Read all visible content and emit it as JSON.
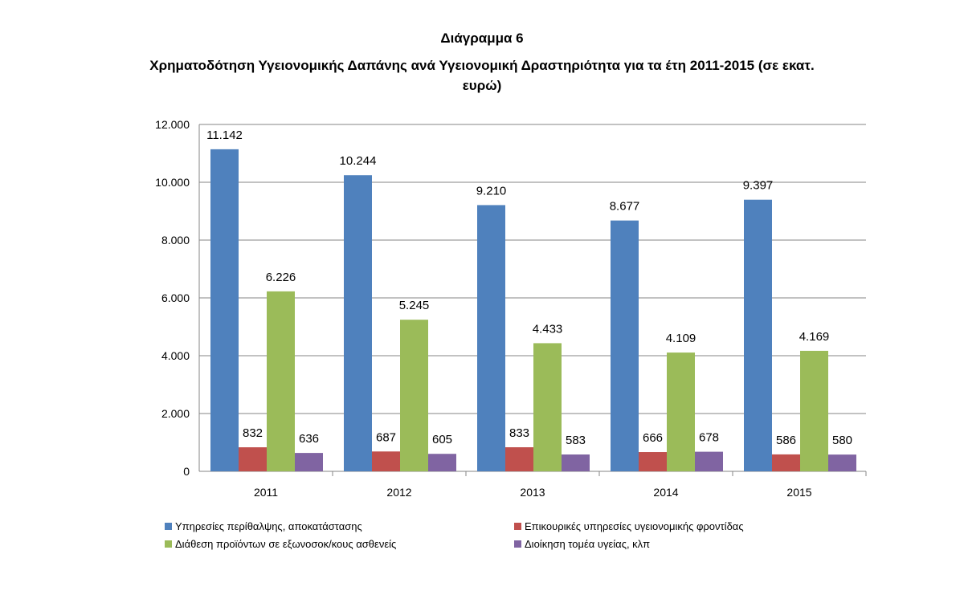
{
  "chart_data": {
    "type": "bar",
    "title": "Διάγραμμα 6",
    "subtitle": "Χρηματοδότηση Υγειονομικής Δαπάνης ανά Υγειονομική Δραστηριότητα για τα έτη 2011-2015 (σε εκατ.",
    "subtitle_line2": "ευρώ)",
    "categories": [
      "2011",
      "2012",
      "2013",
      "2014",
      "2015"
    ],
    "ylim": [
      0,
      12000
    ],
    "yticks": [
      0,
      2000,
      4000,
      6000,
      8000,
      10000,
      12000
    ],
    "ytick_labels": [
      "0",
      "2.000",
      "4.000",
      "6.000",
      "8.000",
      "10.000",
      "12.000"
    ],
    "grid": true,
    "legend_placement": "bottom",
    "series": [
      {
        "name": "Υπηρεσίες περίθαλψης, αποκατάστασης",
        "color": "#4F81BD",
        "values": [
          11142,
          10244,
          9210,
          8677,
          9397
        ],
        "labels": [
          "11.142",
          "10.244",
          "9.210",
          "8.677",
          "9.397"
        ]
      },
      {
        "name": "Επικουρικές υπηρεσίες υγειονομικής φροντίδας",
        "color": "#C0504D",
        "values": [
          832,
          687,
          833,
          666,
          586
        ],
        "labels": [
          "832",
          "687",
          "833",
          "666",
          "586"
        ]
      },
      {
        "name": "Διάθεση προϊόντων σε εξωνοσοκ/κους ασθενείς",
        "color": "#9BBB59",
        "values": [
          6226,
          5245,
          4433,
          4109,
          4169
        ],
        "labels": [
          "6.226",
          "5.245",
          "4.433",
          "4.109",
          "4.169"
        ]
      },
      {
        "name": "Διοίκηση τομέα υγείας, κλπ",
        "color": "#8064A2",
        "values": [
          636,
          605,
          583,
          678,
          580
        ],
        "labels": [
          "636",
          "605",
          "583",
          "678",
          "580"
        ]
      }
    ]
  }
}
